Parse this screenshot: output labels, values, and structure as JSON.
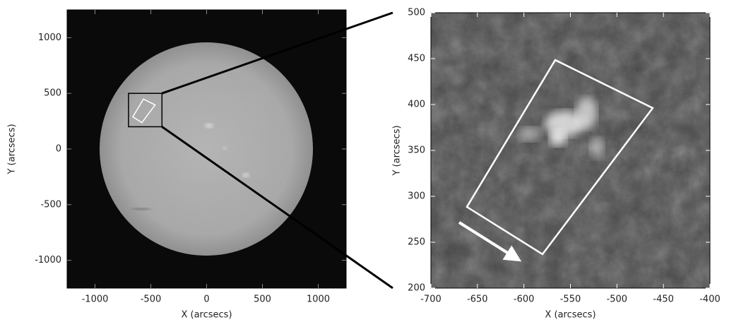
{
  "chart_data": [
    {
      "type": "image",
      "xlabel": "X (arcsecs)",
      "ylabel": "Y (arcsecs)",
      "xlim": [
        -1250,
        1250
      ],
      "ylim": [
        -1250,
        1250
      ],
      "xticks": [
        -1000,
        -500,
        0,
        500,
        1000
      ],
      "yticks": [
        -1000,
        -500,
        0,
        500,
        1000
      ]
    },
    {
      "type": "image",
      "xlabel": "X (arcsecs)",
      "ylabel": "Y (arcsecs)",
      "xlim": [
        -700,
        -400
      ],
      "ylim": [
        200,
        500
      ],
      "xticks": [
        -700,
        -650,
        -600,
        -550,
        -500,
        -450,
        -400
      ],
      "yticks": [
        200,
        250,
        300,
        350,
        400,
        450,
        500
      ]
    }
  ]
}
